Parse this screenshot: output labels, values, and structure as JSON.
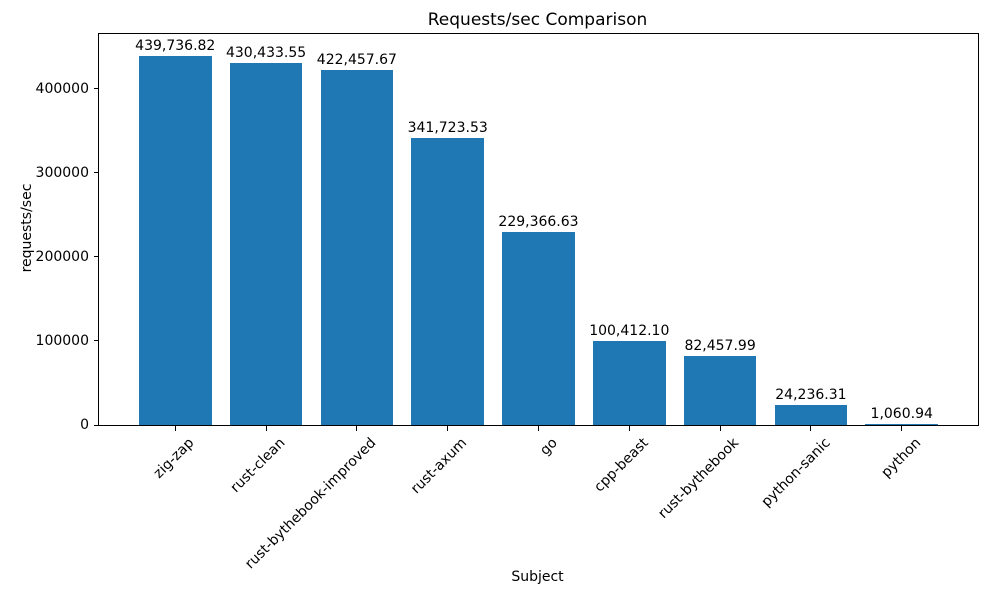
{
  "chart_data": {
    "type": "bar",
    "title": "Requests/sec Comparison",
    "xlabel": "Subject",
    "ylabel": "requests/sec",
    "categories": [
      "zig-zap",
      "rust-clean",
      "rust-bythebook-improved",
      "rust-axum",
      "go",
      "cpp-beast",
      "rust-bythebook",
      "python-sanic",
      "python"
    ],
    "values": [
      439736.82,
      430433.55,
      422457.67,
      341723.53,
      229366.63,
      100412.1,
      82457.99,
      24236.31,
      1060.94
    ],
    "value_labels": [
      "439,736.82",
      "430,433.55",
      "422,457.67",
      "341,723.53",
      "229,366.63",
      "100,412.10",
      "82,457.99",
      "24,236.31",
      "1,060.94"
    ],
    "yticks": [
      0,
      100000,
      200000,
      300000,
      400000
    ],
    "ytick_labels": [
      "0",
      "100000",
      "200000",
      "300000",
      "400000"
    ],
    "ylim": [
      0,
      465476
    ],
    "bar_color": "#1f77b4",
    "bar_width_fraction": 0.8,
    "x_tick_rotation": 45,
    "grid": false,
    "legend": "none"
  }
}
